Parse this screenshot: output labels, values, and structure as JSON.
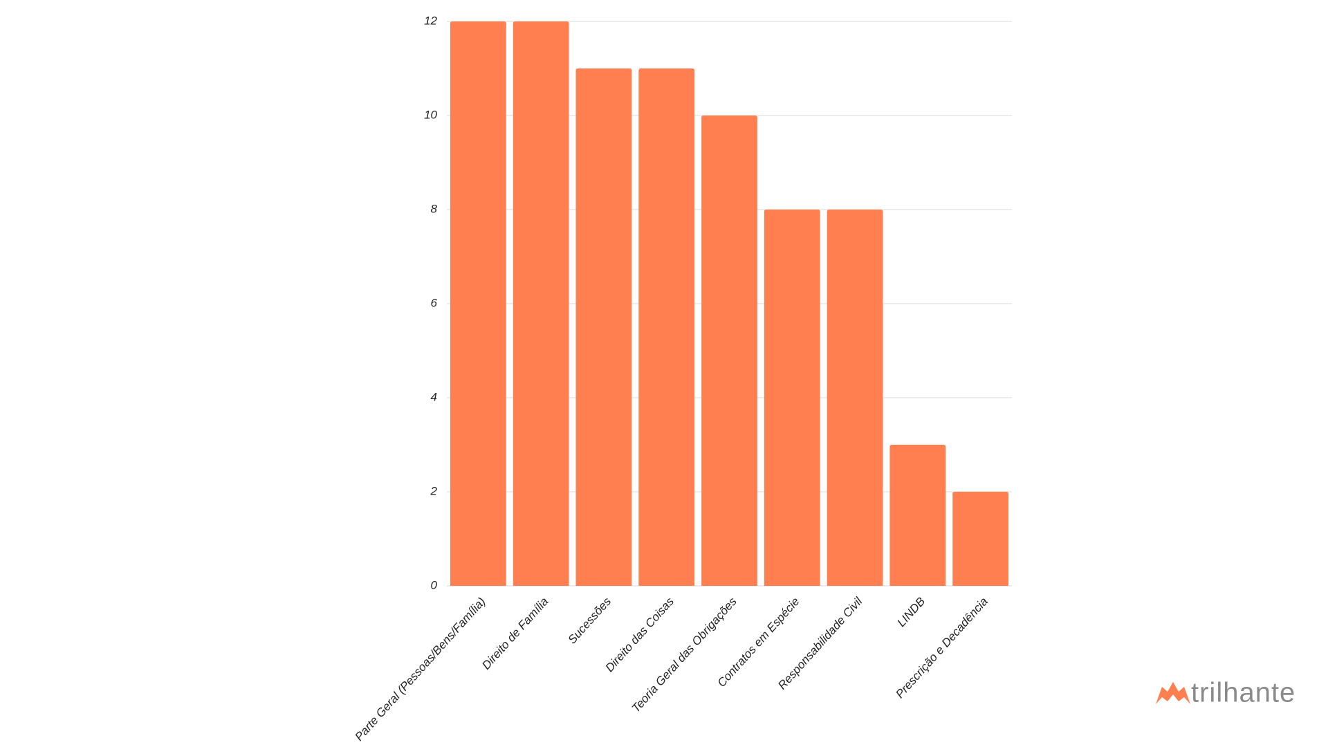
{
  "chart_data": {
    "type": "bar",
    "categories": [
      "Parte Geral (Pessoas/Bens/Família)",
      "Direito de Família",
      "Sucessões",
      "Direito das Coisas",
      "Teoria Geral das Obrigações",
      "Contratos em Espécie",
      "Responsabilidade Civil",
      "LINDB",
      "Prescrição e Decadência"
    ],
    "values": [
      12,
      12,
      11,
      11,
      10,
      8,
      8,
      3,
      2
    ],
    "color": "#ff7f50",
    "ylim": [
      0,
      12
    ],
    "yticks": [
      0,
      2,
      4,
      6,
      8,
      10,
      12
    ],
    "grid": true
  },
  "logo": {
    "text": "trilhante"
  }
}
